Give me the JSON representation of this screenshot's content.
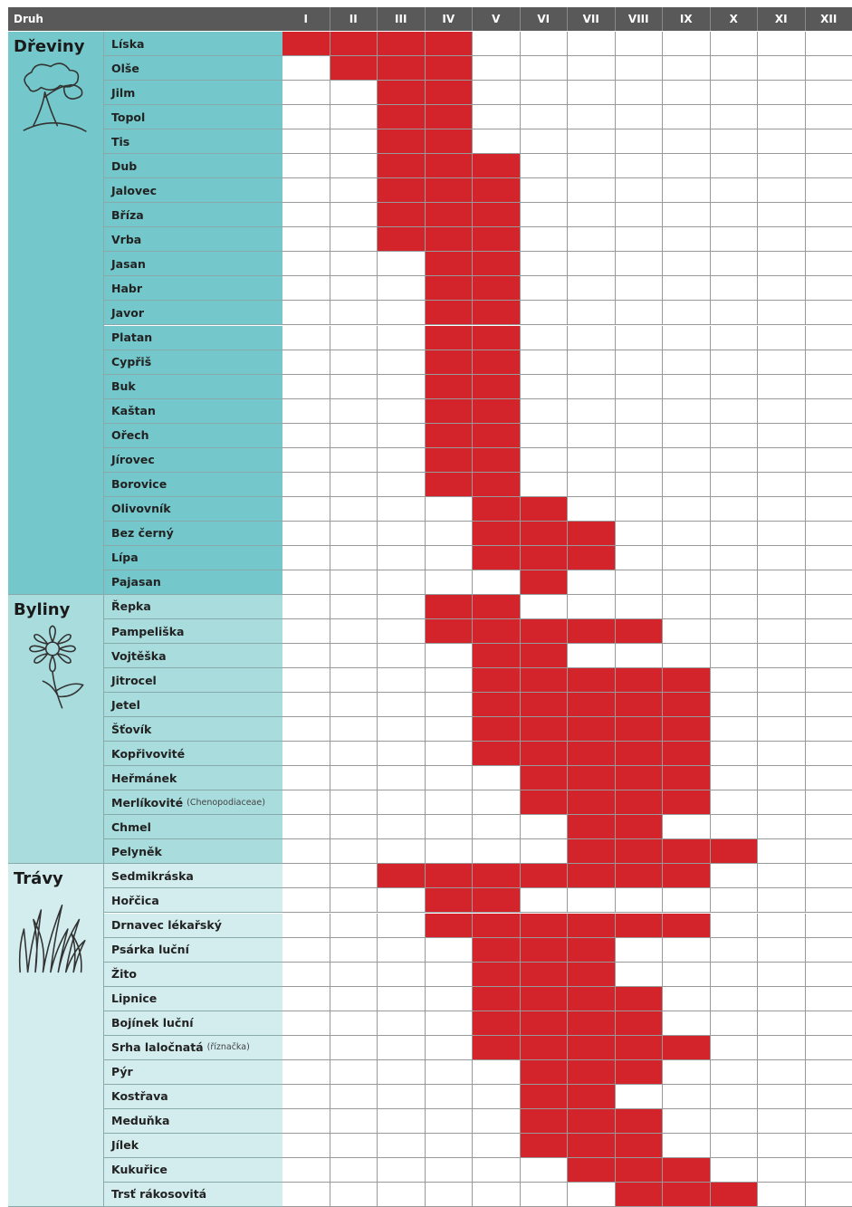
{
  "header": {
    "first": "Druh",
    "months": [
      "I",
      "II",
      "III",
      "IV",
      "V",
      "VI",
      "VII",
      "VIII",
      "IX",
      "X",
      "XI",
      "XII"
    ]
  },
  "groups": [
    {
      "label": "Dřeviny",
      "rows": [
        {
          "name": "Líska",
          "pollen": [
            true,
            true,
            true,
            true,
            false,
            false,
            false,
            false,
            false,
            false,
            false,
            false
          ]
        },
        {
          "name": "Olše",
          "pollen": [
            false,
            true,
            true,
            true,
            false,
            false,
            false,
            false,
            false,
            false,
            false,
            false
          ]
        },
        {
          "name": "Jilm",
          "pollen": [
            false,
            false,
            true,
            true,
            false,
            false,
            false,
            false,
            false,
            false,
            false,
            false
          ]
        },
        {
          "name": "Topol",
          "pollen": [
            false,
            false,
            true,
            true,
            false,
            false,
            false,
            false,
            false,
            false,
            false,
            false
          ]
        },
        {
          "name": "Tis",
          "pollen": [
            false,
            false,
            true,
            true,
            false,
            false,
            false,
            false,
            false,
            false,
            false,
            false
          ]
        },
        {
          "name": "Dub",
          "pollen": [
            false,
            false,
            true,
            true,
            true,
            false,
            false,
            false,
            false,
            false,
            false,
            false
          ]
        },
        {
          "name": "Jalovec",
          "pollen": [
            false,
            false,
            true,
            true,
            true,
            false,
            false,
            false,
            false,
            false,
            false,
            false
          ]
        },
        {
          "name": "Bříza",
          "pollen": [
            false,
            false,
            true,
            true,
            true,
            false,
            false,
            false,
            false,
            false,
            false,
            false
          ]
        },
        {
          "name": "Vrba",
          "pollen": [
            false,
            false,
            true,
            true,
            true,
            false,
            false,
            false,
            false,
            false,
            false,
            false
          ]
        },
        {
          "name": "Jasan",
          "pollen": [
            false,
            false,
            false,
            true,
            true,
            false,
            false,
            false,
            false,
            false,
            false,
            false
          ]
        },
        {
          "name": "Habr",
          "pollen": [
            false,
            false,
            false,
            true,
            true,
            false,
            false,
            false,
            false,
            false,
            false,
            false
          ]
        },
        {
          "name": "Javor",
          "pollen": [
            false,
            false,
            false,
            true,
            true,
            false,
            false,
            false,
            false,
            false,
            false,
            false
          ]
        },
        {
          "name": "Platan",
          "pollen": [
            false,
            false,
            false,
            true,
            true,
            false,
            false,
            false,
            false,
            false,
            false,
            false
          ]
        },
        {
          "name": "Cypřiš",
          "pollen": [
            false,
            false,
            false,
            true,
            true,
            false,
            false,
            false,
            false,
            false,
            false,
            false
          ]
        },
        {
          "name": "Buk",
          "pollen": [
            false,
            false,
            false,
            true,
            true,
            false,
            false,
            false,
            false,
            false,
            false,
            false
          ]
        },
        {
          "name": "Kaštan",
          "pollen": [
            false,
            false,
            false,
            true,
            true,
            false,
            false,
            false,
            false,
            false,
            false,
            false
          ]
        },
        {
          "name": "Ořech",
          "pollen": [
            false,
            false,
            false,
            true,
            true,
            false,
            false,
            false,
            false,
            false,
            false,
            false
          ]
        },
        {
          "name": "Jírovec",
          "pollen": [
            false,
            false,
            false,
            true,
            true,
            false,
            false,
            false,
            false,
            false,
            false,
            false
          ]
        },
        {
          "name": "Borovice",
          "pollen": [
            false,
            false,
            false,
            true,
            true,
            false,
            false,
            false,
            false,
            false,
            false,
            false
          ]
        },
        {
          "name": "Olivovník",
          "pollen": [
            false,
            false,
            false,
            false,
            true,
            true,
            false,
            false,
            false,
            false,
            false,
            false
          ]
        },
        {
          "name": "Bez černý",
          "pollen": [
            false,
            false,
            false,
            false,
            true,
            true,
            true,
            false,
            false,
            false,
            false,
            false
          ]
        },
        {
          "name": "Lípa",
          "pollen": [
            false,
            false,
            false,
            false,
            true,
            true,
            true,
            false,
            false,
            false,
            false,
            false
          ]
        },
        {
          "name": "Pajasan",
          "pollen": [
            false,
            false,
            false,
            false,
            false,
            true,
            false,
            false,
            false,
            false,
            false,
            false
          ]
        }
      ]
    },
    {
      "label": "Byliny",
      "rows": [
        {
          "name": "Řepka",
          "pollen": [
            false,
            false,
            false,
            true,
            true,
            false,
            false,
            false,
            false,
            false,
            false,
            false
          ]
        },
        {
          "name": "Pampeliška",
          "pollen": [
            false,
            false,
            false,
            true,
            true,
            true,
            true,
            true,
            false,
            false,
            false,
            false
          ]
        },
        {
          "name": "Vojtěška",
          "pollen": [
            false,
            false,
            false,
            false,
            true,
            true,
            false,
            false,
            false,
            false,
            false,
            false
          ]
        },
        {
          "name": "Jitrocel",
          "pollen": [
            false,
            false,
            false,
            false,
            true,
            true,
            true,
            true,
            true,
            false,
            false,
            false
          ]
        },
        {
          "name": "Jetel",
          "pollen": [
            false,
            false,
            false,
            false,
            true,
            true,
            true,
            true,
            true,
            false,
            false,
            false
          ]
        },
        {
          "name": "Šťovík",
          "pollen": [
            false,
            false,
            false,
            false,
            true,
            true,
            true,
            true,
            true,
            false,
            false,
            false
          ]
        },
        {
          "name": "Kopřivovité",
          "pollen": [
            false,
            false,
            false,
            false,
            true,
            true,
            true,
            true,
            true,
            false,
            false,
            false
          ]
        },
        {
          "name": "Heřmánek",
          "pollen": [
            false,
            false,
            false,
            false,
            false,
            true,
            true,
            true,
            true,
            false,
            false,
            false
          ]
        },
        {
          "name": "Merlíkovité",
          "note": "(Chenopodiaceae)",
          "pollen": [
            false,
            false,
            false,
            false,
            false,
            true,
            true,
            true,
            true,
            false,
            false,
            false
          ]
        },
        {
          "name": "Chmel",
          "pollen": [
            false,
            false,
            false,
            false,
            false,
            false,
            true,
            true,
            false,
            false,
            false,
            false
          ]
        },
        {
          "name": "Pelyněk",
          "pollen": [
            false,
            false,
            false,
            false,
            false,
            false,
            true,
            true,
            true,
            true,
            false,
            false
          ]
        }
      ]
    },
    {
      "label": "Trávy",
      "rows": [
        {
          "name": "Sedmikráska",
          "pollen": [
            false,
            false,
            true,
            true,
            true,
            true,
            true,
            true,
            true,
            false,
            false,
            false
          ]
        },
        {
          "name": "Hořčica",
          "pollen": [
            false,
            false,
            false,
            true,
            true,
            false,
            false,
            false,
            false,
            false,
            false,
            false
          ]
        },
        {
          "name": "Drnavec lékařský",
          "pollen": [
            false,
            false,
            false,
            true,
            true,
            true,
            true,
            true,
            true,
            false,
            false,
            false
          ]
        },
        {
          "name": "Psárka luční",
          "pollen": [
            false,
            false,
            false,
            false,
            true,
            true,
            true,
            false,
            false,
            false,
            false,
            false
          ]
        },
        {
          "name": "Žito",
          "pollen": [
            false,
            false,
            false,
            false,
            true,
            true,
            true,
            false,
            false,
            false,
            false,
            false
          ]
        },
        {
          "name": "Lipnice",
          "pollen": [
            false,
            false,
            false,
            false,
            true,
            true,
            true,
            true,
            false,
            false,
            false,
            false
          ]
        },
        {
          "name": "Bojínek luční",
          "pollen": [
            false,
            false,
            false,
            false,
            true,
            true,
            true,
            true,
            false,
            false,
            false,
            false
          ]
        },
        {
          "name": "Srha laločnatá",
          "note": "(říznačka)",
          "pollen": [
            false,
            false,
            false,
            false,
            true,
            true,
            true,
            true,
            true,
            false,
            false,
            false
          ]
        },
        {
          "name": "Pýr",
          "pollen": [
            false,
            false,
            false,
            false,
            false,
            true,
            true,
            true,
            false,
            false,
            false,
            false
          ]
        },
        {
          "name": "Kostřava",
          "pollen": [
            false,
            false,
            false,
            false,
            false,
            true,
            true,
            false,
            false,
            false,
            false,
            false
          ]
        },
        {
          "name": "Meduňka",
          "pollen": [
            false,
            false,
            false,
            false,
            false,
            true,
            true,
            true,
            false,
            false,
            false,
            false
          ]
        },
        {
          "name": "Jílek",
          "pollen": [
            false,
            false,
            false,
            false,
            false,
            true,
            true,
            true,
            false,
            false,
            false,
            false
          ]
        },
        {
          "name": "Kukuřice",
          "pollen": [
            false,
            false,
            false,
            false,
            false,
            false,
            true,
            true,
            true,
            false,
            false,
            false
          ]
        },
        {
          "name": "Trsť rákosovitá",
          "pollen": [
            false,
            false,
            false,
            false,
            false,
            false,
            false,
            true,
            true,
            true,
            false,
            false
          ]
        }
      ]
    }
  ]
}
